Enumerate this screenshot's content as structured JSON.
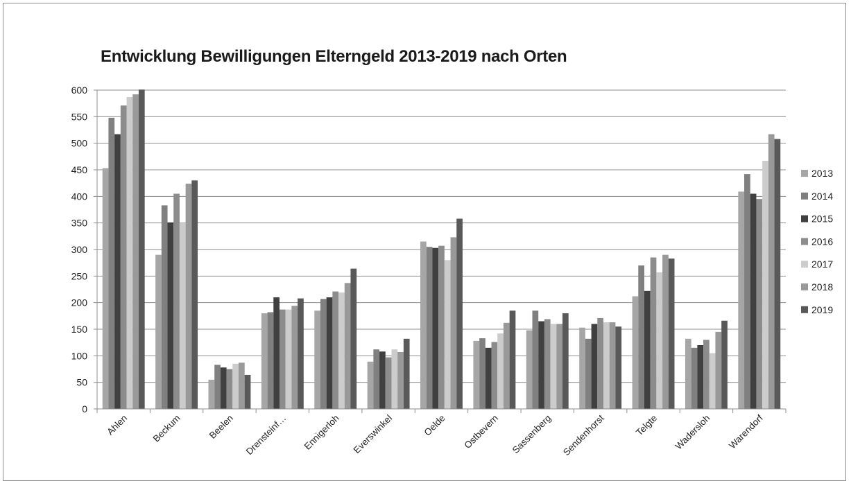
{
  "chart_data": {
    "type": "bar",
    "title": "Entwicklung Bewilligungen Elterngeld 2013-2019 nach Orten",
    "xlabel": "",
    "ylabel": "",
    "ylim": [
      0,
      600
    ],
    "yticks": [
      0,
      50,
      100,
      150,
      200,
      250,
      300,
      350,
      400,
      450,
      500,
      550,
      600
    ],
    "grid": true,
    "legend_position": "right",
    "categories": [
      "Ahlen",
      "Beckum",
      "Beelen",
      "Drensteinf…",
      "Ennigerloh",
      "Everswinkel",
      "Oelde",
      "Ostbevern",
      "Sassenberg",
      "Sendenhorst",
      "Telgte",
      "Wadersloh",
      "Warendorf"
    ],
    "series": [
      {
        "name": "2013",
        "color": "#a6a6a6",
        "values": [
          453,
          290,
          55,
          180,
          185,
          89,
          315,
          128,
          148,
          153,
          212,
          132,
          409
        ]
      },
      {
        "name": "2014",
        "color": "#808080",
        "values": [
          548,
          383,
          83,
          182,
          207,
          112,
          305,
          133,
          185,
          132,
          270,
          115,
          442
        ]
      },
      {
        "name": "2015",
        "color": "#404040",
        "values": [
          517,
          351,
          78,
          210,
          210,
          108,
          303,
          115,
          165,
          160,
          222,
          120,
          405
        ]
      },
      {
        "name": "2016",
        "color": "#8c8c8c",
        "values": [
          571,
          405,
          75,
          187,
          221,
          97,
          307,
          126,
          169,
          171,
          285,
          130,
          395
        ]
      },
      {
        "name": "2017",
        "color": "#cccccc",
        "values": [
          587,
          350,
          85,
          187,
          219,
          112,
          280,
          142,
          160,
          163,
          257,
          105,
          467
        ]
      },
      {
        "name": "2018",
        "color": "#999999",
        "values": [
          592,
          424,
          87,
          194,
          237,
          107,
          323,
          162,
          160,
          163,
          290,
          145,
          517
        ]
      },
      {
        "name": "2019",
        "color": "#595959",
        "values": [
          601,
          430,
          64,
          208,
          264,
          132,
          358,
          185,
          180,
          155,
          283,
          166,
          508
        ]
      }
    ]
  }
}
